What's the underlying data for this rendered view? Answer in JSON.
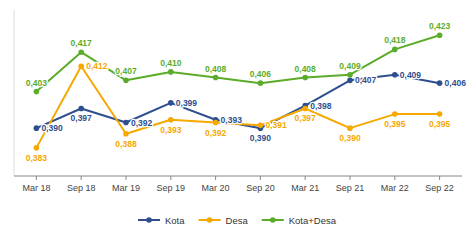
{
  "chart_data": {
    "type": "line",
    "categories": [
      "Mar 18",
      "Sep 18",
      "Mar 19",
      "Sep 19",
      "Mar 20",
      "Sep 20",
      "Mar 21",
      "Sep 21",
      "Mar 22",
      "Sep 22"
    ],
    "series": [
      {
        "name": "Kota",
        "color": "#2e4e8e",
        "values": [
          0.39,
          0.397,
          0.392,
          0.399,
          0.393,
          0.39,
          0.398,
          0.407,
          0.409,
          0.406
        ],
        "value_labels": [
          "0,390",
          "0,397",
          "0,392",
          "0,399",
          "0,393",
          "0,390",
          "0,398",
          "0,407",
          "0,409",
          "0,406"
        ]
      },
      {
        "name": "Desa",
        "color": "#f5a800",
        "values": [
          0.383,
          0.412,
          0.388,
          0.393,
          0.392,
          0.391,
          0.397,
          0.39,
          0.395,
          0.395
        ],
        "value_labels": [
          "0,383",
          "0,412",
          "0,388",
          "0,393",
          "0,392",
          "0,391",
          "0,397",
          "0,390",
          "0,395",
          "0,395"
        ]
      },
      {
        "name": "Kota+Desa",
        "color": "#5bac2a",
        "values": [
          0.403,
          0.417,
          0.407,
          0.41,
          0.408,
          0.406,
          0.408,
          0.409,
          0.418,
          0.423
        ],
        "value_labels": [
          "0,403",
          "0,417",
          "0,407",
          "0,410",
          "0,408",
          "0,406",
          "0,408",
          "0,409",
          "0,418",
          "0,423"
        ]
      }
    ],
    "ylim": [
      0.373,
      0.432
    ],
    "tick_labels": "x",
    "data_labels": true,
    "marker": "circle",
    "legend": "bottom",
    "grid": false
  }
}
